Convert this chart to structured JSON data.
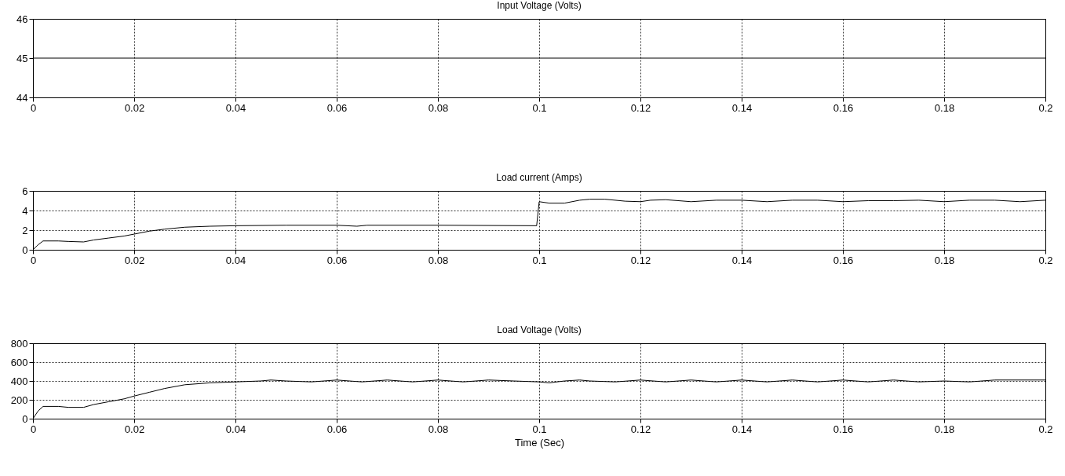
{
  "chart_data": [
    {
      "type": "line",
      "title": "Input Voltage (Volts)",
      "x": [
        0,
        0.2
      ],
      "series": [
        {
          "color": "#000000",
          "values": [
            45,
            45
          ]
        }
      ],
      "xlim": [
        0,
        0.2
      ],
      "xticks": [
        0,
        0.02,
        0.04,
        0.06,
        0.08,
        0.1,
        0.12,
        0.14,
        0.16,
        0.18,
        0.2
      ],
      "ylim": [
        44,
        46
      ],
      "yticks": [
        44,
        45,
        46
      ],
      "grid": "x"
    },
    {
      "type": "line",
      "title": "Load current (Amps)",
      "x": [
        0,
        0.001,
        0.002,
        0.005,
        0.007,
        0.01,
        0.012,
        0.015,
        0.018,
        0.02,
        0.023,
        0.026,
        0.03,
        0.035,
        0.04,
        0.05,
        0.06,
        0.064,
        0.066,
        0.08,
        0.0995,
        0.1,
        0.102,
        0.105,
        0.108,
        0.11,
        0.113,
        0.117,
        0.12,
        0.122,
        0.125,
        0.13,
        0.135,
        0.14,
        0.145,
        0.15,
        0.155,
        0.16,
        0.165,
        0.17,
        0.175,
        0.18,
        0.185,
        0.19,
        0.195,
        0.2
      ],
      "series": [
        {
          "color": "#000000",
          "values": [
            0,
            0.5,
            0.9,
            0.9,
            0.85,
            0.8,
            1.0,
            1.2,
            1.4,
            1.6,
            1.9,
            2.1,
            2.3,
            2.4,
            2.45,
            2.5,
            2.5,
            2.4,
            2.5,
            2.5,
            2.45,
            4.9,
            4.75,
            4.75,
            5.05,
            5.15,
            5.15,
            4.95,
            4.9,
            5.05,
            5.1,
            4.9,
            5.05,
            5.05,
            4.9,
            5.05,
            5.05,
            4.9,
            5.0,
            5.0,
            5.05,
            4.9,
            5.05,
            5.05,
            4.9,
            5.05
          ]
        }
      ],
      "xlim": [
        0,
        0.2
      ],
      "xticks": [
        0,
        0.02,
        0.04,
        0.06,
        0.08,
        0.1,
        0.12,
        0.14,
        0.16,
        0.18,
        0.2
      ],
      "ylim": [
        0,
        6
      ],
      "yticks": [
        0,
        2,
        4,
        6
      ],
      "grid": true
    },
    {
      "type": "line",
      "title": "Load Voltage (Volts)",
      "xlabel": "Time (Sec)",
      "x": [
        0,
        0.001,
        0.002,
        0.005,
        0.007,
        0.01,
        0.012,
        0.015,
        0.018,
        0.02,
        0.023,
        0.026,
        0.03,
        0.035,
        0.04,
        0.045,
        0.047,
        0.05,
        0.055,
        0.06,
        0.065,
        0.07,
        0.075,
        0.08,
        0.085,
        0.09,
        0.095,
        0.1,
        0.102,
        0.105,
        0.108,
        0.11,
        0.115,
        0.12,
        0.125,
        0.13,
        0.135,
        0.14,
        0.145,
        0.15,
        0.155,
        0.16,
        0.165,
        0.17,
        0.175,
        0.18,
        0.185,
        0.19,
        0.2
      ],
      "series": [
        {
          "color": "#000000",
          "values": [
            0,
            80,
            130,
            130,
            120,
            120,
            150,
            180,
            210,
            240,
            280,
            320,
            360,
            380,
            390,
            400,
            410,
            400,
            390,
            410,
            390,
            410,
            390,
            410,
            390,
            410,
            400,
            390,
            380,
            400,
            410,
            400,
            390,
            410,
            390,
            410,
            390,
            410,
            390,
            410,
            390,
            410,
            390,
            410,
            390,
            400,
            390,
            410,
            410
          ]
        }
      ],
      "xlim": [
        0,
        0.2
      ],
      "xticks": [
        0,
        0.02,
        0.04,
        0.06,
        0.08,
        0.1,
        0.12,
        0.14,
        0.16,
        0.18,
        0.2
      ],
      "ylim": [
        0,
        800
      ],
      "yticks": [
        0,
        200,
        400,
        600,
        800
      ],
      "grid": true
    }
  ]
}
